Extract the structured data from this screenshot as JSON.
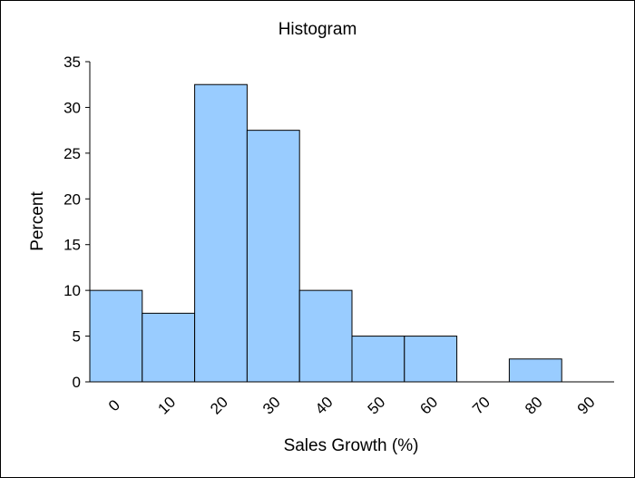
{
  "chart_data": {
    "type": "bar",
    "title": "Histogram",
    "xlabel": "Sales Growth (%)",
    "ylabel": "Percent",
    "categories": [
      "0",
      "10",
      "20",
      "30",
      "40",
      "50",
      "60",
      "70",
      "80",
      "90"
    ],
    "values": [
      10,
      7.5,
      32.5,
      27.5,
      10,
      5,
      5,
      0,
      2.5,
      0
    ],
    "yticks": [
      "0",
      "5",
      "10",
      "15",
      "20",
      "25",
      "30",
      "35"
    ],
    "ylim": [
      0,
      35
    ],
    "grid": false,
    "legend": "none",
    "bar_color": "#99CCFF",
    "bar_edge_color": "#000000"
  }
}
